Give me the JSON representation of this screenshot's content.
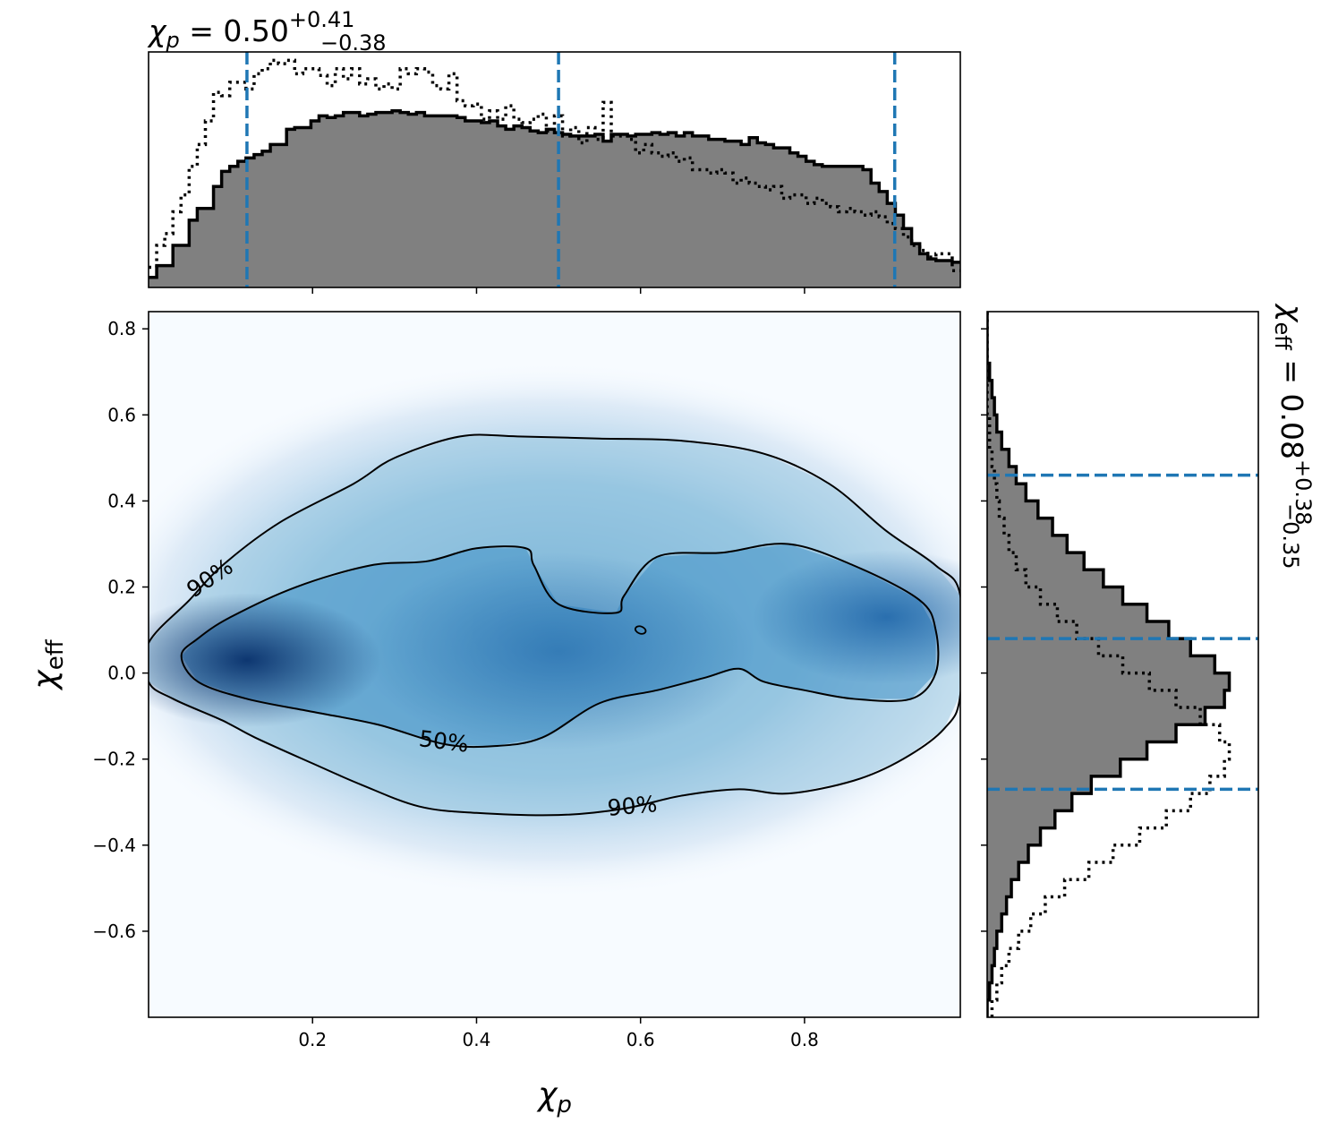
{
  "chart_data": [
    {
      "type": "heatmap",
      "panel": "joint",
      "xlabel_base": "χ",
      "xlabel_sub": "p",
      "ylabel_base": "χ",
      "ylabel_sub": "eff",
      "xlim": [
        0.0,
        0.99
      ],
      "ylim": [
        -0.8,
        0.84
      ],
      "xticks": [
        0.2,
        0.4,
        0.6,
        0.8
      ],
      "yticks": [
        0.8,
        0.6,
        0.4,
        0.2,
        0.0,
        -0.2,
        -0.4,
        -0.6
      ],
      "xtick_labels": [
        "0.2",
        "0.4",
        "0.6",
        "0.8"
      ],
      "ytick_labels": [
        "0.8",
        "0.6",
        "0.4",
        "0.2",
        "0.0",
        "−0.2",
        "−0.4",
        "−0.6"
      ],
      "colormap": "Blues",
      "density_peaks": [
        {
          "x": 0.12,
          "y": 0.03,
          "weight": 1.0
        },
        {
          "x": 0.9,
          "y": 0.13,
          "weight": 0.8
        },
        {
          "x": 0.5,
          "y": 0.05,
          "weight": 0.55
        }
      ],
      "contours": [
        {
          "level": "90%",
          "label": "90%",
          "label_positions": [
            {
              "x": 0.075,
              "y": 0.22,
              "angle": -34
            },
            {
              "x": 0.59,
              "y": -0.31,
              "angle": -5
            }
          ],
          "points": [
            [
              0.0,
              -0.02
            ],
            [
              0.03,
              -0.06
            ],
            [
              0.09,
              -0.11
            ],
            [
              0.13,
              -0.15
            ],
            [
              0.2,
              -0.21
            ],
            [
              0.26,
              -0.26
            ],
            [
              0.33,
              -0.31
            ],
            [
              0.4,
              -0.325
            ],
            [
              0.5,
              -0.33
            ],
            [
              0.58,
              -0.315
            ],
            [
              0.65,
              -0.285
            ],
            [
              0.72,
              -0.27
            ],
            [
              0.78,
              -0.28
            ],
            [
              0.86,
              -0.25
            ],
            [
              0.92,
              -0.2
            ],
            [
              0.97,
              -0.13
            ],
            [
              0.99,
              -0.05
            ],
            [
              0.99,
              0.18
            ],
            [
              0.96,
              0.25
            ],
            [
              0.9,
              0.33
            ],
            [
              0.83,
              0.44
            ],
            [
              0.75,
              0.51
            ],
            [
              0.65,
              0.54
            ],
            [
              0.55,
              0.545
            ],
            [
              0.45,
              0.55
            ],
            [
              0.38,
              0.55
            ],
            [
              0.3,
              0.5
            ],
            [
              0.25,
              0.44
            ],
            [
              0.16,
              0.35
            ],
            [
              0.09,
              0.25
            ],
            [
              0.05,
              0.17
            ],
            [
              0.0,
              0.07
            ]
          ]
        },
        {
          "level": "50%",
          "label": "50%",
          "label_positions": [
            {
              "x": 0.36,
              "y": -0.16,
              "angle": 7
            }
          ],
          "points": [
            [
              0.04,
              0.04
            ],
            [
              0.06,
              -0.02
            ],
            [
              0.12,
              -0.06
            ],
            [
              0.2,
              -0.09
            ],
            [
              0.28,
              -0.12
            ],
            [
              0.36,
              -0.165
            ],
            [
              0.42,
              -0.17
            ],
            [
              0.48,
              -0.15
            ],
            [
              0.55,
              -0.07
            ],
            [
              0.62,
              -0.04
            ],
            [
              0.68,
              -0.01
            ],
            [
              0.72,
              0.01
            ],
            [
              0.75,
              -0.02
            ],
            [
              0.8,
              -0.04
            ],
            [
              0.86,
              -0.06
            ],
            [
              0.93,
              -0.06
            ],
            [
              0.96,
              0.0
            ],
            [
              0.96,
              0.1
            ],
            [
              0.94,
              0.17
            ],
            [
              0.86,
              0.25
            ],
            [
              0.78,
              0.3
            ],
            [
              0.7,
              0.28
            ],
            [
              0.62,
              0.27
            ],
            [
              0.58,
              0.18
            ],
            [
              0.57,
              0.14
            ],
            [
              0.5,
              0.16
            ],
            [
              0.47,
              0.25
            ],
            [
              0.46,
              0.29
            ],
            [
              0.4,
              0.29
            ],
            [
              0.34,
              0.26
            ],
            [
              0.27,
              0.25
            ],
            [
              0.18,
              0.2
            ],
            [
              0.1,
              0.13
            ],
            [
              0.06,
              0.08
            ]
          ]
        }
      ],
      "small_contour": {
        "x": 0.6,
        "y": 0.1
      }
    },
    {
      "type": "histogram",
      "panel": "top-marginal",
      "title_base": "χ",
      "title_sub": "p",
      "title_value": " = 0.50",
      "title_plus": "+0.41",
      "title_minus": "−0.38",
      "xlim": [
        0.0,
        0.99
      ],
      "bin_width": 0.02,
      "bin_start": 0.0,
      "posterior_values": [
        0.06,
        0.13,
        0.13,
        0.25,
        0.25,
        0.4,
        0.47,
        0.47,
        0.6,
        0.69,
        0.72,
        0.75,
        0.77,
        0.79,
        0.81,
        0.85,
        0.85,
        0.94,
        0.95,
        0.95,
        0.99,
        1.02,
        1.01,
        1.02,
        1.04,
        1.04,
        1.02,
        1.03,
        1.04,
        1.04,
        1.05,
        1.04,
        1.03,
        1.04,
        1.02,
        1.02,
        1.02,
        1.02,
        1.01,
        0.99,
        0.99,
        0.98,
        0.99,
        0.96,
        0.94,
        0.96,
        0.95,
        0.93,
        0.92,
        0.94,
        0.92,
        0.91,
        0.9,
        0.9,
        0.9,
        0.91,
        0.87,
        0.91,
        0.91,
        0.9,
        0.91,
        0.91,
        0.92,
        0.91,
        0.92,
        0.9,
        0.92,
        0.9,
        0.9,
        0.88,
        0.88,
        0.87,
        0.87,
        0.85,
        0.89,
        0.86,
        0.85,
        0.83,
        0.83,
        0.8,
        0.78,
        0.75,
        0.73,
        0.72,
        0.72,
        0.72,
        0.72,
        0.72,
        0.7,
        0.62,
        0.57,
        0.5,
        0.43,
        0.35,
        0.26,
        0.2,
        0.17,
        0.16,
        0.16,
        0.15
      ],
      "prior_values": [
        0.12,
        0.25,
        0.32,
        0.45,
        0.55,
        0.72,
        0.85,
        0.99,
        1.16,
        1.14,
        1.22,
        1.22,
        1.18,
        1.27,
        1.3,
        1.35,
        1.33,
        1.35,
        1.27,
        1.3,
        1.3,
        1.26,
        1.2,
        1.3,
        1.24,
        1.3,
        1.21,
        1.24,
        1.18,
        1.21,
        1.18,
        1.3,
        1.27,
        1.3,
        1.28,
        1.2,
        1.18,
        1.27,
        1.11,
        1.08,
        1.09,
        1.0,
        1.05,
        1.0,
        1.08,
        1.0,
        0.98,
        1.0,
        1.03,
        0.93,
        1.02,
        0.9,
        0.95,
        0.86,
        0.95,
        0.88,
        1.1,
        0.9,
        0.9,
        0.88,
        0.8,
        0.85,
        0.8,
        0.78,
        0.8,
        0.75,
        0.77,
        0.7,
        0.7,
        0.68,
        0.7,
        0.68,
        0.62,
        0.65,
        0.62,
        0.6,
        0.58,
        0.6,
        0.53,
        0.55,
        0.55,
        0.5,
        0.53,
        0.5,
        0.48,
        0.45,
        0.47,
        0.45,
        0.43,
        0.45,
        0.42,
        0.38,
        0.35,
        0.3,
        0.25,
        0.22,
        0.18,
        0.2,
        0.2,
        0.1
      ],
      "quantiles": [
        0.12,
        0.5,
        0.91
      ],
      "quantile_color": "#1f77b4",
      "fill_color": "#808080"
    },
    {
      "type": "histogram",
      "panel": "right-marginal",
      "orientation": "horizontal",
      "title_base": "χ",
      "title_sub": "eff",
      "title_value": " = 0.08",
      "title_plus": "+0.38",
      "title_minus": "−0.35",
      "ylim": [
        -0.8,
        0.84
      ],
      "bin_width": 0.04,
      "bin_start": -0.8,
      "posterior_values": [
        0.0,
        0.01,
        0.02,
        0.03,
        0.04,
        0.06,
        0.08,
        0.1,
        0.13,
        0.17,
        0.22,
        0.28,
        0.35,
        0.43,
        0.55,
        0.66,
        0.78,
        0.9,
        0.98,
        1.0,
        0.94,
        0.84,
        0.75,
        0.66,
        0.56,
        0.48,
        0.4,
        0.33,
        0.27,
        0.21,
        0.16,
        0.12,
        0.09,
        0.06,
        0.04,
        0.03,
        0.02,
        0.01,
        0.0,
        0.0,
        0.0
      ],
      "prior_values": [
        0.02,
        0.04,
        0.06,
        0.09,
        0.13,
        0.18,
        0.24,
        0.32,
        0.42,
        0.52,
        0.63,
        0.74,
        0.84,
        0.92,
        0.98,
        1.0,
        0.96,
        0.88,
        0.78,
        0.67,
        0.56,
        0.46,
        0.37,
        0.29,
        0.22,
        0.16,
        0.12,
        0.09,
        0.07,
        0.05,
        0.04,
        0.03,
        0.02,
        0.01,
        0.01,
        0.0,
        0.0,
        0.0,
        0.0,
        0.0,
        0.0
      ],
      "quantiles": [
        -0.27,
        0.08,
        0.46
      ],
      "quantile_color": "#1f77b4",
      "fill_color": "#808080"
    }
  ]
}
